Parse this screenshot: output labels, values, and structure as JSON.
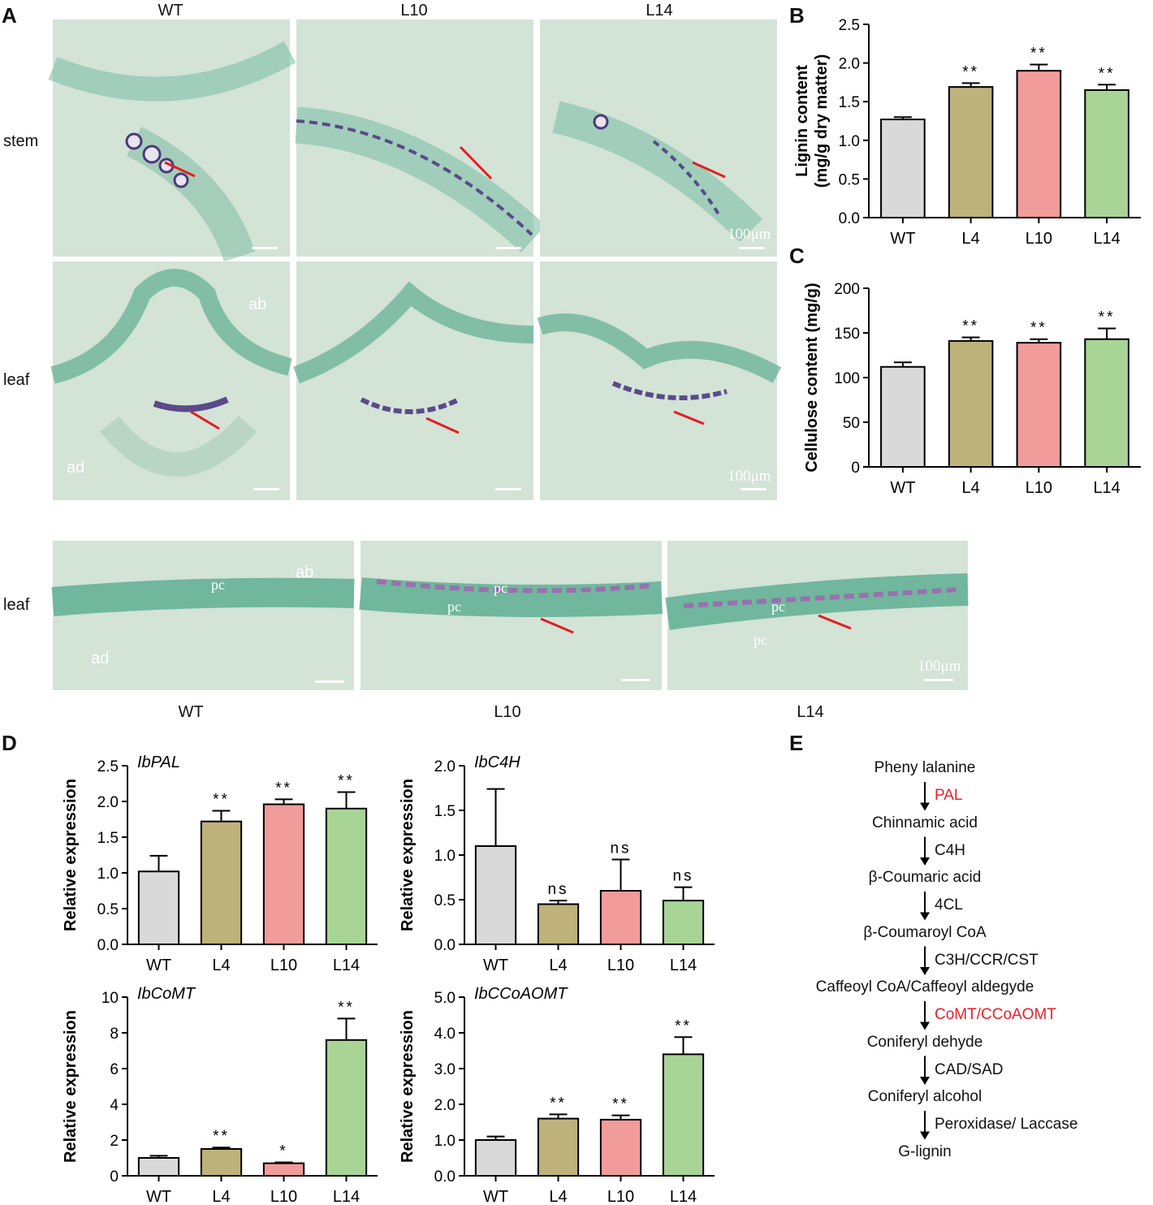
{
  "panels": {
    "A": "A",
    "B": "B",
    "C": "C",
    "D": "D",
    "E": "E"
  },
  "panel_a": {
    "top_cols": [
      "WT",
      "L10",
      "L14"
    ],
    "rows": [
      "stem",
      "leaf",
      "leaf"
    ],
    "bottom_cols": [
      "WT",
      "L10",
      "L14"
    ],
    "scale_label": "100μm",
    "ab": "ab",
    "ad": "ad",
    "pc": "pc"
  },
  "chart_data": [
    {
      "id": "B",
      "type": "bar",
      "categories": [
        "WT",
        "L4",
        "L10",
        "L14"
      ],
      "values": [
        1.27,
        1.69,
        1.9,
        1.65
      ],
      "errors": [
        0.03,
        0.05,
        0.08,
        0.07
      ],
      "sig": [
        "",
        "**",
        "**",
        "**"
      ],
      "ylabel": "Lignin content (mg/g dry matter)",
      "ylim": [
        0,
        2.5
      ],
      "ticks": [
        "0.0",
        "0.5",
        "1.0",
        "1.5",
        "2.0",
        "2.5"
      ]
    },
    {
      "id": "C",
      "type": "bar",
      "categories": [
        "WT",
        "L4",
        "L10",
        "L14"
      ],
      "values": [
        112,
        141,
        139,
        143
      ],
      "errors": [
        5,
        4,
        4,
        12
      ],
      "sig": [
        "",
        "**",
        "**",
        "**"
      ],
      "ylabel": "Cellulose content (mg/g)",
      "ylim": [
        0,
        200
      ],
      "ticks": [
        "0",
        "50",
        "100",
        "150",
        "200"
      ]
    },
    {
      "id": "D1",
      "type": "bar",
      "gene": "IbPAL",
      "categories": [
        "WT",
        "L4",
        "L10",
        "L14"
      ],
      "values": [
        1.02,
        1.72,
        1.96,
        1.9
      ],
      "errors": [
        0.22,
        0.15,
        0.07,
        0.23
      ],
      "sig": [
        "",
        "**",
        "**",
        "**"
      ],
      "ylabel": "Relative expression",
      "ylim": [
        0,
        2.5
      ],
      "ticks": [
        "0.0",
        "0.5",
        "1.0",
        "1.5",
        "2.0",
        "2.5"
      ]
    },
    {
      "id": "D2",
      "type": "bar",
      "gene": "IbC4H",
      "categories": [
        "WT",
        "L4",
        "L10",
        "L14"
      ],
      "values": [
        1.1,
        0.45,
        0.6,
        0.49
      ],
      "errors": [
        0.64,
        0.04,
        0.35,
        0.15
      ],
      "sig": [
        "",
        "ns",
        "ns",
        "ns"
      ],
      "ylabel": "Relative expression",
      "ylim": [
        0,
        2.0
      ],
      "ticks": [
        "0.0",
        "0.5",
        "1.0",
        "1.5",
        "2.0"
      ]
    },
    {
      "id": "D3",
      "type": "bar",
      "gene": "IbCoMT",
      "categories": [
        "WT",
        "L4",
        "L10",
        "L14"
      ],
      "values": [
        1.0,
        1.5,
        0.7,
        7.6
      ],
      "errors": [
        0.12,
        0.08,
        0.05,
        1.2
      ],
      "sig": [
        "",
        "**",
        "*",
        "**"
      ],
      "ylabel": "Relative expression",
      "ylim": [
        0,
        10
      ],
      "ticks": [
        "0",
        "2",
        "4",
        "6",
        "8",
        "10"
      ]
    },
    {
      "id": "D4",
      "type": "bar",
      "gene": "IbCCoAOMT",
      "categories": [
        "WT",
        "L4",
        "L10",
        "L14"
      ],
      "values": [
        1.0,
        1.6,
        1.57,
        3.4
      ],
      "errors": [
        0.1,
        0.12,
        0.12,
        0.48
      ],
      "sig": [
        "",
        "**",
        "**",
        "**"
      ],
      "ylabel": "Relative expression",
      "ylim": [
        0,
        5.0
      ],
      "ticks": [
        "0.0",
        "1.0",
        "2.0",
        "3.0",
        "4.0",
        "5.0"
      ]
    }
  ],
  "colors": {
    "WT": "#d9d9d9",
    "L4": "#bdb27a",
    "L10": "#f29b9b",
    "L14": "#a8d495",
    "enzyme_highlight": "#e8202a"
  },
  "pathway": {
    "steps": [
      "Pheny lalanine",
      "Chinnamic acid",
      "β-Coumaric acid",
      "β-Coumaroyl CoA",
      "Caffeoyl CoA/Caffeoyl aldegyde",
      "Coniferyl dehyde",
      "Coniferyl alcohol",
      "G-lignin"
    ],
    "enzymes": [
      "PAL",
      "C4H",
      "4CL",
      "C3H/CCR/CST",
      "CoMT/CCoAOMT",
      "CAD/SAD",
      "Peroxidase/ Laccase"
    ],
    "highlight": [
      true,
      false,
      false,
      false,
      true,
      false,
      false
    ]
  }
}
